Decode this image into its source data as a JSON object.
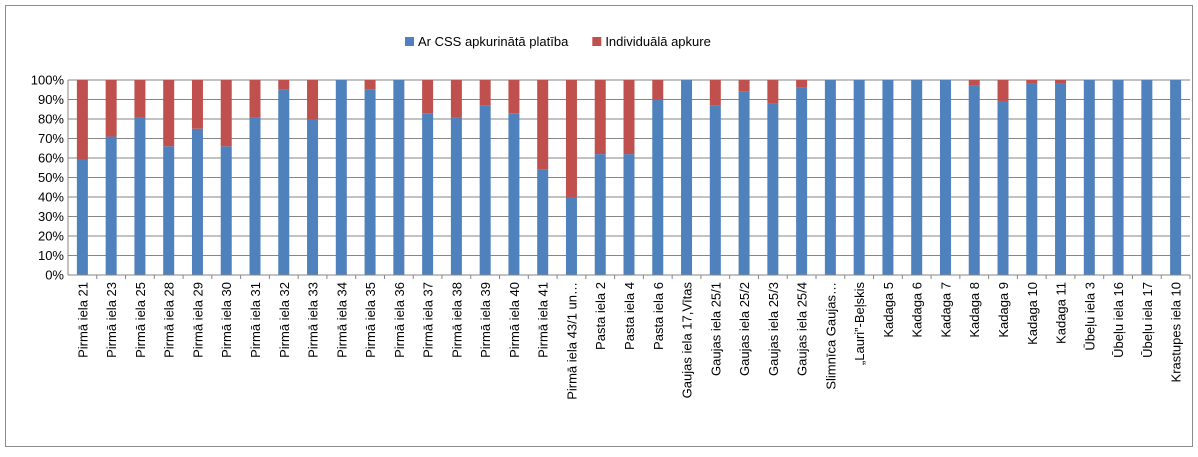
{
  "chart_data": {
    "type": "stacked_bar",
    "categories": [
      "Pirmā iela 21",
      "Pirmā iela 23",
      "Pirmā iela 25",
      "Pirmā iela 28",
      "Pirmā iela 29",
      "Pirmā iela 30",
      "Pirmā iela 31",
      "Pirmā iela 32",
      "Pirmā iela 33",
      "Pirmā iela 34",
      "Pirmā iela 35",
      "Pirmā iela 36",
      "Pirmā iela 37",
      "Pirmā iela 38",
      "Pirmā iela 39",
      "Pirmā iela 40",
      "Pirmā iela 41",
      "Pirmā iela 43/1 un…",
      "Pasta iela 2",
      "Pasta iela 4",
      "Pasta iela 6",
      "Gaujas iela 17,Vītas",
      "Gaujas iela 25/1",
      "Gaujas iela 25/2",
      "Gaujas iela 25/3",
      "Gaujas iela 25/4",
      "Slimnīca Gaujas…",
      "„Lauri”-Beļskis",
      "Kadaga 5",
      "Kadaga 6",
      "Kadaga 7",
      "Kadaga 8",
      "Kadaga 9",
      "Kadaga 10",
      "Kadaga 11",
      "Ūbeļu iela 3",
      "Ūbeļu iela 16",
      "Ūbeļu iela 17",
      "Krastupes iela 10"
    ],
    "series": [
      {
        "name": "Ar CSS apkurinātā platība",
        "color": "#4f81bd",
        "values": [
          59,
          71,
          81,
          66,
          75,
          66,
          81,
          95,
          80,
          100,
          95,
          100,
          83,
          81,
          87,
          83,
          54,
          40,
          62,
          62,
          90,
          100,
          87,
          94,
          88,
          96,
          100,
          100,
          100,
          100,
          100,
          97,
          89,
          98,
          98,
          100,
          100,
          100,
          100
        ]
      },
      {
        "name": "Individuālā apkure",
        "color": "#c0504d",
        "values": [
          41,
          29,
          19,
          34,
          25,
          34,
          19,
          5,
          20,
          0,
          5,
          0,
          17,
          19,
          13,
          17,
          46,
          60,
          38,
          38,
          10,
          0,
          13,
          6,
          12,
          4,
          0,
          0,
          0,
          0,
          0,
          3,
          11,
          2,
          2,
          0,
          0,
          0,
          0
        ]
      }
    ],
    "ylim": [
      0,
      100
    ],
    "yticks": [
      {
        "value": 0,
        "label": "0%"
      },
      {
        "value": 10,
        "label": "10%"
      },
      {
        "value": 20,
        "label": "20%"
      },
      {
        "value": 30,
        "label": "30%"
      },
      {
        "value": 40,
        "label": "40%"
      },
      {
        "value": 50,
        "label": "50%"
      },
      {
        "value": 60,
        "label": "60%"
      },
      {
        "value": 70,
        "label": "70%"
      },
      {
        "value": 80,
        "label": "80%"
      },
      {
        "value": 90,
        "label": "90%"
      },
      {
        "value": 100,
        "label": "100%"
      }
    ],
    "grid": true,
    "legend": "top"
  }
}
